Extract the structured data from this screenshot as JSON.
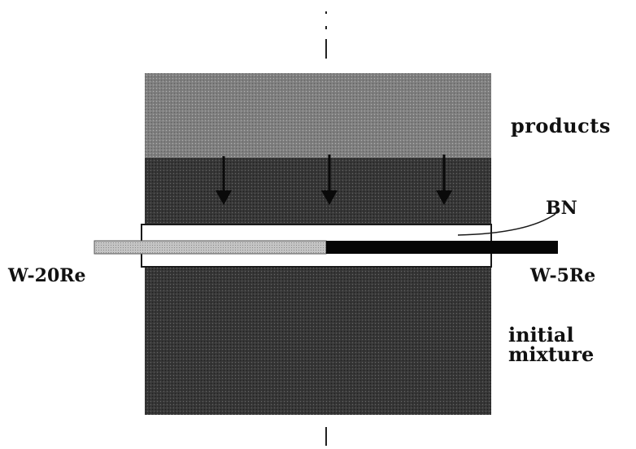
{
  "labels": {
    "products": "products",
    "bn": "BN",
    "w20re": "W-20Re",
    "w5re": "W-5Re",
    "initial_line1": "initial",
    "initial_line2": "mixture"
  },
  "colors": {
    "products_zone": "#8a8a8a",
    "initial_zone": "#3d3d3d",
    "bn_sheath": "#ffffff",
    "w20re_wire": "#b8b8b8",
    "w5re_wire": "#050505",
    "arrow": "#0a0a0a"
  },
  "arrow_count": 3
}
